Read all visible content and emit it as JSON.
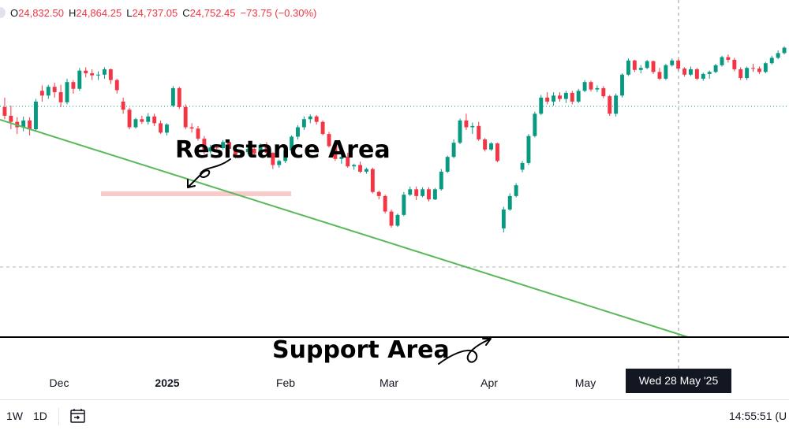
{
  "header": {
    "open_label": "O",
    "open": "24,832.50",
    "high_label": "H",
    "high": "24,864.25",
    "low_label": "L",
    "low": "24,737.05",
    "close_label": "C",
    "close": "24,752.45",
    "change": "−73.75 (−0.30%)"
  },
  "annotations": {
    "resistance": "Resistance Area",
    "support": "Support Area"
  },
  "crosshair": {
    "date_label": "Wed 28 May '25"
  },
  "bottom_bar": {
    "interval_1w": "1W",
    "interval_1d": "1D",
    "clock": "14:55:51 (U"
  },
  "colors": {
    "up": "#089981",
    "down": "#f23645",
    "trendline": "#5cb85c",
    "resistance_zone": "#f9caca",
    "support_line": "#000000"
  },
  "chart_data": {
    "type": "candlestick",
    "x_tick_labels": [
      "Dec",
      "2025",
      "Feb",
      "Mar",
      "Apr",
      "May"
    ],
    "y_range": [
      21600,
      26600
    ],
    "candles": [
      [
        25480,
        25620,
        25300,
        25350
      ],
      [
        25350,
        25500,
        25150,
        25260
      ],
      [
        25260,
        25330,
        25080,
        25180
      ],
      [
        25180,
        25340,
        25120,
        25280
      ],
      [
        25280,
        25330,
        25060,
        25150
      ],
      [
        25150,
        25600,
        25120,
        25560
      ],
      [
        25720,
        25800,
        25560,
        25650
      ],
      [
        25650,
        25810,
        25600,
        25780
      ],
      [
        25780,
        25840,
        25620,
        25700
      ],
      [
        25700,
        25810,
        25480,
        25550
      ],
      [
        25550,
        25900,
        25520,
        25850
      ],
      [
        25850,
        25880,
        25680,
        25750
      ],
      [
        25750,
        26060,
        25720,
        26020
      ],
      [
        26020,
        26070,
        25920,
        25980
      ],
      [
        25980,
        26040,
        25880,
        25950
      ],
      [
        25950,
        26010,
        25880,
        25960
      ],
      [
        25960,
        26070,
        25900,
        26040
      ],
      [
        26040,
        26050,
        25820,
        25880
      ],
      [
        25880,
        25900,
        25680,
        25730
      ],
      [
        25560,
        25620,
        25380,
        25440
      ],
      [
        25440,
        25470,
        25150,
        25180
      ],
      [
        25180,
        25320,
        25160,
        25300
      ],
      [
        25300,
        25350,
        25230,
        25260
      ],
      [
        25260,
        25390,
        25220,
        25340
      ],
      [
        25340,
        25380,
        25200,
        25240
      ],
      [
        25240,
        25280,
        25080,
        25100
      ],
      [
        25100,
        25240,
        25060,
        25220
      ],
      [
        25500,
        25790,
        25480,
        25760
      ],
      [
        25760,
        25780,
        25450,
        25480
      ],
      [
        25480,
        25520,
        25150,
        25180
      ],
      [
        25180,
        25240,
        25100,
        25160
      ],
      [
        25160,
        25200,
        24980,
        25010
      ],
      [
        25010,
        25050,
        24780,
        24820
      ],
      [
        24820,
        24920,
        24790,
        24880
      ],
      [
        24880,
        24920,
        24840,
        24870
      ],
      [
        24870,
        24990,
        24850,
        24960
      ],
      [
        24960,
        24990,
        24840,
        24860
      ],
      [
        24860,
        24900,
        24720,
        24750
      ],
      [
        24750,
        24840,
        24730,
        24810
      ],
      [
        24810,
        24880,
        24780,
        24860
      ],
      [
        24860,
        24900,
        24760,
        24790
      ],
      [
        24790,
        24940,
        24760,
        24920
      ],
      [
        24920,
        24960,
        24780,
        24800
      ],
      [
        24800,
        24810,
        24560,
        24620
      ],
      [
        24620,
        24700,
        24580,
        24680
      ],
      [
        24680,
        24870,
        24650,
        24840
      ],
      [
        24840,
        25060,
        24820,
        25040
      ],
      [
        25040,
        25210,
        25000,
        25180
      ],
      [
        25180,
        25340,
        25140,
        25300
      ],
      [
        25300,
        25370,
        25240,
        25340
      ],
      [
        25340,
        25360,
        25220,
        25260
      ],
      [
        25260,
        25280,
        25060,
        25080
      ],
      [
        25080,
        25110,
        24880,
        24900
      ],
      [
        24900,
        24910,
        24680,
        24710
      ],
      [
        24710,
        24760,
        24640,
        24740
      ],
      [
        24740,
        24800,
        24580,
        24600
      ],
      [
        24600,
        24640,
        24550,
        24620
      ],
      [
        24620,
        24670,
        24500,
        24520
      ],
      [
        24520,
        24580,
        24490,
        24560
      ],
      [
        24560,
        24580,
        24200,
        24220
      ],
      [
        24220,
        24240,
        24110,
        24160
      ],
      [
        24160,
        24180,
        23900,
        23930
      ],
      [
        23930,
        23960,
        23690,
        23720
      ],
      [
        23720,
        23900,
        23700,
        23880
      ],
      [
        23880,
        24220,
        23860,
        24180
      ],
      [
        24180,
        24300,
        24160,
        24260
      ],
      [
        24260,
        24300,
        24100,
        24160
      ],
      [
        24160,
        24290,
        24140,
        24260
      ],
      [
        24260,
        24290,
        24080,
        24110
      ],
      [
        24110,
        24280,
        24100,
        24260
      ],
      [
        24260,
        24560,
        24240,
        24520
      ],
      [
        24520,
        24760,
        24500,
        24740
      ],
      [
        24740,
        25000,
        24720,
        24950
      ],
      [
        24950,
        25310,
        24930,
        25280
      ],
      [
        25280,
        25380,
        25140,
        25180
      ],
      [
        25180,
        25250,
        25080,
        25200
      ],
      [
        25200,
        25260,
        24980,
        25000
      ],
      [
        25000,
        25020,
        24820,
        24850
      ],
      [
        24850,
        24960,
        24830,
        24940
      ],
      [
        24940,
        24950,
        24660,
        24680
      ],
      [
        23680,
        24000,
        23620,
        23960
      ],
      [
        23960,
        24200,
        23940,
        24160
      ],
      [
        24160,
        24350,
        24140,
        24320
      ],
      [
        24550,
        24680,
        24510,
        24650
      ],
      [
        24650,
        25080,
        24620,
        25050
      ],
      [
        25050,
        25410,
        25030,
        25380
      ],
      [
        25380,
        25660,
        25360,
        25620
      ],
      [
        25620,
        25700,
        25520,
        25560
      ],
      [
        25560,
        25700,
        25500,
        25650
      ],
      [
        25650,
        25700,
        25560,
        25600
      ],
      [
        25600,
        25720,
        25540,
        25690
      ],
      [
        25690,
        25720,
        25520,
        25560
      ],
      [
        25560,
        25750,
        25540,
        25720
      ],
      [
        25720,
        25880,
        25700,
        25850
      ],
      [
        25850,
        25870,
        25710,
        25740
      ],
      [
        25740,
        25800,
        25700,
        25760
      ],
      [
        25760,
        25790,
        25610,
        25640
      ],
      [
        25640,
        25660,
        25350,
        25380
      ],
      [
        25380,
        25680,
        25340,
        25650
      ],
      [
        25650,
        25980,
        25620,
        25960
      ],
      [
        25960,
        26200,
        25940,
        26170
      ],
      [
        26170,
        26180,
        26000,
        26030
      ],
      [
        26030,
        26100,
        25980,
        26060
      ],
      [
        26060,
        26180,
        26040,
        26160
      ],
      [
        26160,
        26170,
        25970,
        26000
      ],
      [
        26000,
        26060,
        25880,
        25900
      ],
      [
        25900,
        26120,
        25880,
        26100
      ],
      [
        26100,
        26200,
        26080,
        26170
      ],
      [
        26170,
        26190,
        26020,
        26050
      ],
      [
        26050,
        26070,
        25930,
        25960
      ],
      [
        25960,
        26080,
        25940,
        26040
      ],
      [
        26040,
        26060,
        25880,
        25900
      ],
      [
        25900,
        25990,
        25870,
        25970
      ],
      [
        25970,
        26020,
        25900,
        26000
      ],
      [
        26000,
        26120,
        25980,
        26100
      ],
      [
        26100,
        26240,
        26080,
        26220
      ],
      [
        26220,
        26260,
        26140,
        26180
      ],
      [
        26180,
        26210,
        26010,
        26040
      ],
      [
        26040,
        26070,
        25880,
        25910
      ],
      [
        25910,
        26080,
        25880,
        26060
      ],
      [
        26060,
        26120,
        26000,
        26050
      ],
      [
        26050,
        26080,
        25970,
        26000
      ],
      [
        26000,
        26150,
        25980,
        26130
      ],
      [
        26130,
        26240,
        26110,
        26210
      ],
      [
        26210,
        26320,
        26190,
        26280
      ],
      [
        26280,
        26380,
        26260,
        26360
      ]
    ]
  }
}
